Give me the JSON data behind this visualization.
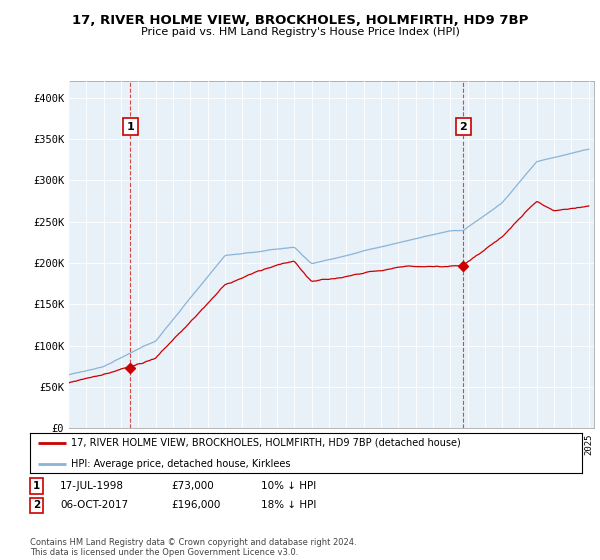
{
  "title": "17, RIVER HOLME VIEW, BROCKHOLES, HOLMFIRTH, HD9 7BP",
  "subtitle": "Price paid vs. HM Land Registry's House Price Index (HPI)",
  "ylim": [
    0,
    420000
  ],
  "yticks": [
    0,
    50000,
    100000,
    150000,
    200000,
    250000,
    300000,
    350000,
    400000
  ],
  "ytick_labels": [
    "£0",
    "£50K",
    "£100K",
    "£150K",
    "£200K",
    "£250K",
    "£300K",
    "£350K",
    "£400K"
  ],
  "sale1": {
    "date_num": 1998.54,
    "price": 73000,
    "label": "1"
  },
  "sale2": {
    "date_num": 2017.76,
    "price": 196000,
    "label": "2"
  },
  "hpi_color": "#8ab4d8",
  "price_color": "#cc0000",
  "legend_label_price": "17, RIVER HOLME VIEW, BROCKHOLES, HOLMFIRTH, HD9 7BP (detached house)",
  "legend_label_hpi": "HPI: Average price, detached house, Kirklees",
  "note1_label": "1",
  "note1_date": "17-JUL-1998",
  "note1_price": "£73,000",
  "note1_hpi": "10% ↓ HPI",
  "note2_label": "2",
  "note2_date": "06-OCT-2017",
  "note2_price": "£196,000",
  "note2_hpi": "18% ↓ HPI",
  "footer": "Contains HM Land Registry data © Crown copyright and database right 2024.\nThis data is licensed under the Open Government Licence v3.0.",
  "background_color": "#ffffff",
  "chart_bg_color": "#e8f0f8",
  "grid_color": "#ffffff"
}
